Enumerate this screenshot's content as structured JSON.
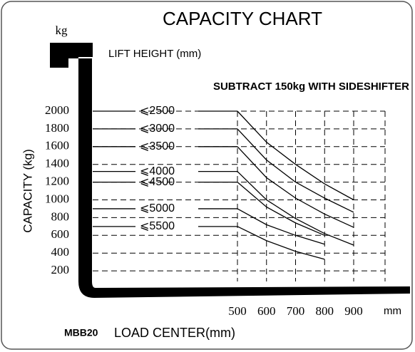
{
  "chart_data": {
    "type": "line",
    "title": "CAPACITY CHART",
    "y_unit": "kg",
    "subtitle": "LIFT HEIGHT (mm)",
    "annotation": "SUBTRACT 150kg WITH SIDESHIFTER",
    "y_label": "CAPACITY (kg)",
    "x_label": "LOAD CENTER(mm)",
    "model": "MBB20",
    "x_unit": "mm",
    "x": [
      500,
      600,
      700,
      800,
      900
    ],
    "xlim": [
      500,
      900
    ],
    "xticks": [
      500,
      600,
      700,
      800,
      900
    ],
    "ylim": [
      0,
      2000
    ],
    "yticks": [
      200,
      400,
      600,
      800,
      1000,
      1200,
      1400,
      1600,
      1800,
      2000
    ],
    "grid": true,
    "series": [
      {
        "name": "⩽2500",
        "color": "#000000",
        "values": [
          2000,
          1650,
          1400,
          1180,
          1000
        ]
      },
      {
        "name": "⩽3000",
        "color": "#000000",
        "values": [
          1800,
          1450,
          1200,
          1020,
          860
        ]
      },
      {
        "name": "⩽3500",
        "color": "#000000",
        "values": [
          1600,
          1250,
          1020,
          840,
          690
        ]
      },
      {
        "name": "⩽4000",
        "color": "#000000",
        "values": [
          1320,
          1000,
          790,
          620,
          490
        ]
      },
      {
        "name": "⩽4500",
        "color": "#000000",
        "values": [
          1200,
          920,
          740,
          600,
          null
        ]
      },
      {
        "name": "⩽5000",
        "color": "#000000",
        "values": [
          900,
          720,
          600,
          500,
          null
        ]
      },
      {
        "name": "⩽5500",
        "color": "#000000",
        "values": [
          700,
          540,
          420,
          330,
          null
        ]
      }
    ]
  }
}
